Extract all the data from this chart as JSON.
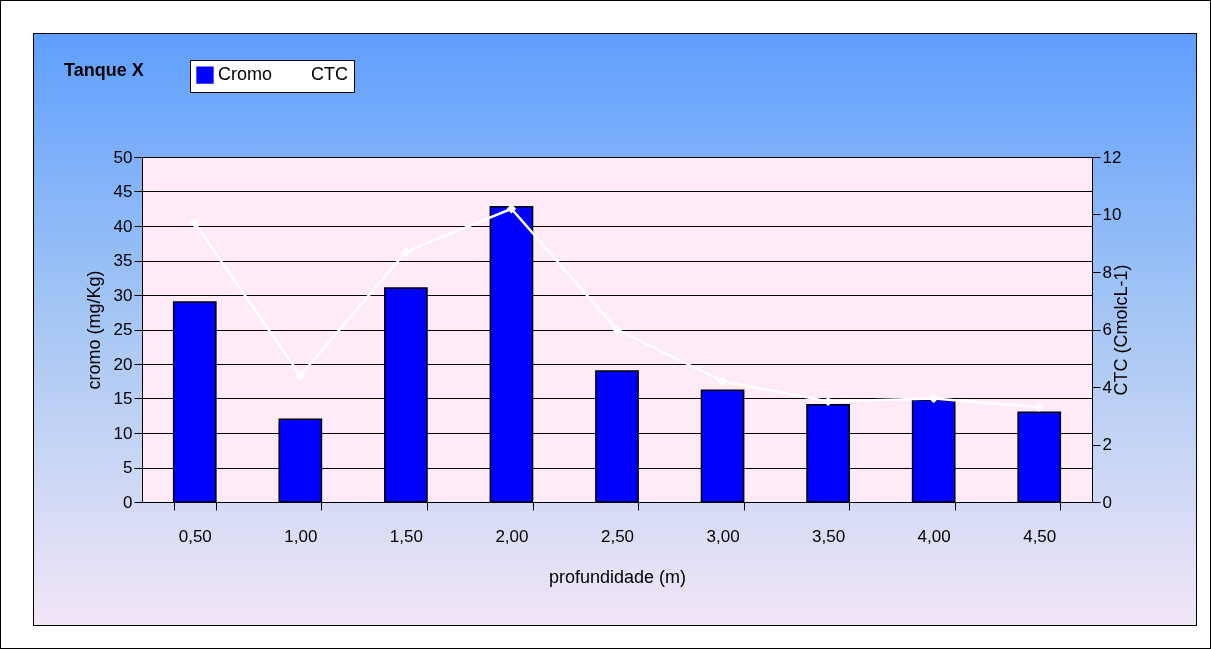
{
  "chart_data": {
    "type": "bar",
    "title": "Tanque X",
    "xlabel": "profundidade (m)",
    "ylabel": "cromo (mg/Kg)",
    "y2label": "CTC (CmolcL-1)",
    "categories": [
      "0,50",
      "1,00",
      "1,50",
      "2,00",
      "2,50",
      "3,00",
      "3,50",
      "4,00",
      "4,50"
    ],
    "series": [
      {
        "name": "Cromo",
        "color": "#0000ff",
        "values": [
          29,
          12,
          31,
          42.8,
          19,
          16.2,
          14.1,
          14.8,
          13
        ]
      },
      {
        "name": "CTC",
        "type": "line",
        "axis": "y2",
        "color": "#ffffff",
        "marker": "diamond",
        "values": [
          9.7,
          4.4,
          8.7,
          10.2,
          6.0,
          4.2,
          3.5,
          3.6,
          3.3
        ]
      }
    ],
    "ylim": [
      0,
      50
    ],
    "yticks": [
      0,
      5,
      10,
      15,
      20,
      25,
      30,
      35,
      40,
      45,
      50
    ],
    "y2lim": [
      0,
      12
    ],
    "y2ticks": [
      0,
      2,
      4,
      6,
      8,
      10,
      12
    ],
    "grid": "y",
    "legend": "top left"
  }
}
